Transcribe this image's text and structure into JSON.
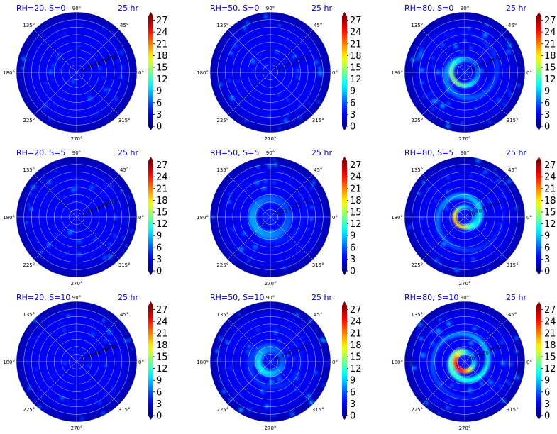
{
  "chart_data": {
    "type": "heatmap",
    "projection": "polar",
    "layout": {
      "rows": 3,
      "cols": 3
    },
    "colormap": "jet",
    "color_range": [
      0,
      28
    ],
    "radial_grid_count": 8,
    "theta_tick_labels": [
      "90°",
      "45°",
      "0°",
      "315°",
      "270°",
      "225°",
      "180°",
      "135°"
    ],
    "radial_tick_labels_visible": [
      "20",
      "40",
      "60",
      "80",
      "100"
    ],
    "colorbar_ticks": [
      "0",
      "3",
      "6",
      "9",
      "12",
      "15",
      "18",
      "21",
      "24",
      "27"
    ],
    "colorbar_extend": "both",
    "panels": [
      {
        "title": "RH=20, S=0",
        "time": "25 hr",
        "vortex_strength": 0,
        "ring_radius": 0,
        "ring_width": 0,
        "spiral": 0,
        "speckle_level": 1.0
      },
      {
        "title": "RH=50, S=0",
        "time": "25 hr",
        "vortex_strength": 0,
        "ring_radius": 0,
        "ring_width": 0,
        "spiral": 0,
        "speckle_level": 1.2
      },
      {
        "title": "RH=80, S=0",
        "time": "25 hr",
        "vortex_strength": 9,
        "ring_radius": 0.22,
        "ring_width": 0.07,
        "spiral": 1.2,
        "speckle_level": 1.4
      },
      {
        "title": "RH=20, S=5",
        "time": "25 hr",
        "vortex_strength": 0,
        "ring_radius": 0,
        "ring_width": 0,
        "spiral": 0,
        "speckle_level": 1.1
      },
      {
        "title": "RH=50, S=5",
        "time": "25 hr",
        "vortex_strength": 3,
        "ring_radius": 0.3,
        "ring_width": 0.12,
        "spiral": 0.8,
        "speckle_level": 1.3
      },
      {
        "title": "RH=80, S=5",
        "time": "25 hr",
        "vortex_strength": 14,
        "ring_radius": 0.17,
        "ring_width": 0.06,
        "spiral": 1.4,
        "speckle_level": 1.3
      },
      {
        "title": "RH=20, S=10",
        "time": "25 hr",
        "vortex_strength": 0,
        "ring_radius": 0,
        "ring_width": 0,
        "spiral": 0,
        "speckle_level": 1.1
      },
      {
        "title": "RH=50, S=10",
        "time": "25 hr",
        "vortex_strength": 5,
        "ring_radius": 0.2,
        "ring_width": 0.1,
        "spiral": 1.6,
        "speckle_level": 1.5
      },
      {
        "title": "RH=80, S=10",
        "time": "25 hr",
        "vortex_strength": 20,
        "ring_radius": 0.16,
        "ring_width": 0.07,
        "spiral": 1.8,
        "speckle_level": 1.5
      }
    ]
  }
}
